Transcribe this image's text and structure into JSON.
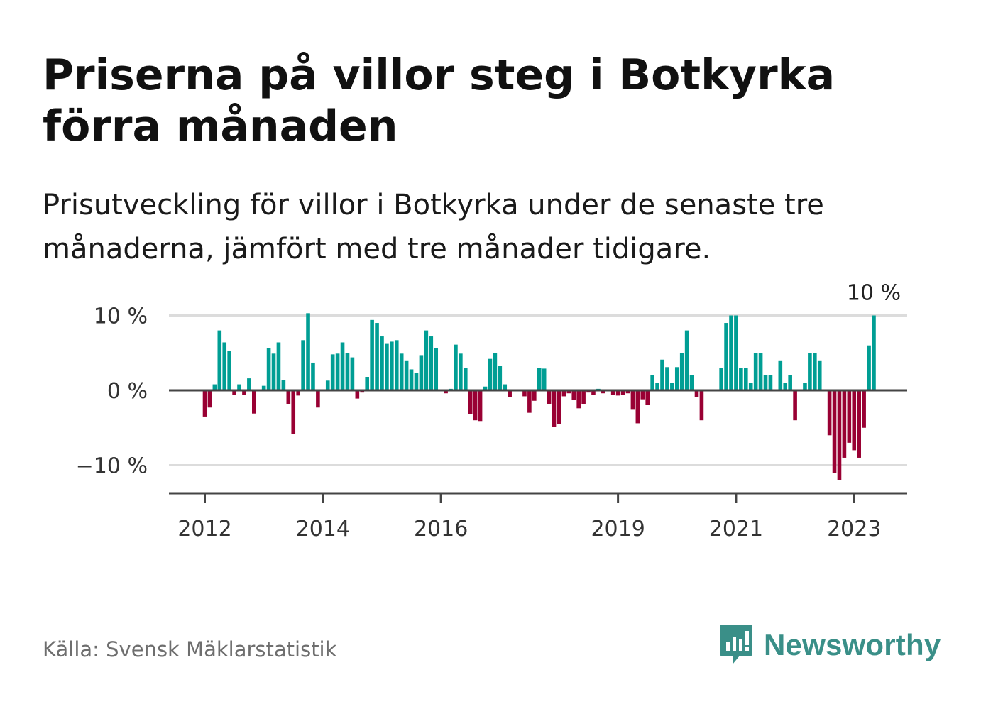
{
  "title": "Priserna på villor steg i Botkyrka förra månaden",
  "subtitle": "Prisutveckling för villor i Botkyrka under de senaste tre månaderna, jämfört med tre månader tidigare.",
  "source": "Källa: Svensk Mäklarstatistik",
  "brand": "Newsworthy",
  "colors": {
    "positive": "#009e94",
    "negative": "#990033",
    "grid": "#dcdcdc",
    "axis": "#444444",
    "brand": "#3a8f88"
  },
  "chart_data": {
    "type": "bar",
    "title": "Priserna på villor steg i Botkyrka förra månaden",
    "ylabel": "",
    "xlabel": "",
    "unit": "%",
    "ylim": [
      -13.5,
      10.5
    ],
    "yticks": [
      10,
      0,
      -10
    ],
    "ytick_labels": [
      "10 %",
      "0 %",
      "−10 %"
    ],
    "x_start": "2012-01",
    "xticks": [
      {
        "label": "2012",
        "index": 0
      },
      {
        "label": "2014",
        "index": 24
      },
      {
        "label": "2016",
        "index": 48
      },
      {
        "label": "2019",
        "index": 84
      },
      {
        "label": "2021",
        "index": 108
      },
      {
        "label": "2023",
        "index": 132
      }
    ],
    "last_value_label": "10 %",
    "values": [
      -3.5,
      -2.3,
      0.8,
      8.0,
      6.4,
      5.3,
      -0.6,
      0.8,
      -0.6,
      1.6,
      -3.1,
      0.0,
      0.6,
      5.6,
      4.9,
      6.4,
      1.4,
      -1.8,
      -5.8,
      -0.7,
      6.7,
      10.3,
      3.7,
      -2.3,
      0.0,
      1.3,
      4.8,
      4.9,
      6.4,
      5.0,
      4.4,
      -1.1,
      -0.3,
      1.8,
      9.4,
      9.0,
      7.2,
      6.2,
      6.5,
      6.7,
      4.9,
      4.0,
      2.8,
      2.3,
      4.7,
      8.0,
      7.2,
      5.6,
      0.0,
      -0.4,
      0.2,
      6.1,
      4.9,
      3.0,
      -3.2,
      -4.0,
      -4.1,
      0.5,
      4.2,
      5.0,
      3.3,
      0.8,
      -0.9,
      0.0,
      0.0,
      -0.8,
      -3.0,
      -1.4,
      3.0,
      2.9,
      -1.8,
      -4.9,
      -4.5,
      -0.8,
      -0.4,
      -1.3,
      -2.4,
      -1.8,
      -0.3,
      -0.6,
      0.2,
      -0.4,
      0.1,
      -0.6,
      -0.7,
      -0.6,
      -0.4,
      -2.5,
      -4.4,
      -1.2,
      -1.9,
      2.0,
      1.0,
      4.1,
      3.1,
      1.0,
      3.1,
      5.0,
      8.0,
      2.0,
      -0.9,
      -4.0,
      0.0,
      0.0,
      0.0,
      3.0,
      9.0,
      10.0,
      10.0,
      3.0,
      3.0,
      1.0,
      5.0,
      5.0,
      2.0,
      2.0,
      0.0,
      4.0,
      1.0,
      2.0,
      -4.0,
      0.0,
      1.0,
      5.0,
      5.0,
      4.0,
      0.0,
      -6.0,
      -11.0,
      -12.0,
      -9.0,
      -7.0,
      -8.0,
      -9.0,
      -5.0,
      6.0,
      10.0
    ]
  }
}
